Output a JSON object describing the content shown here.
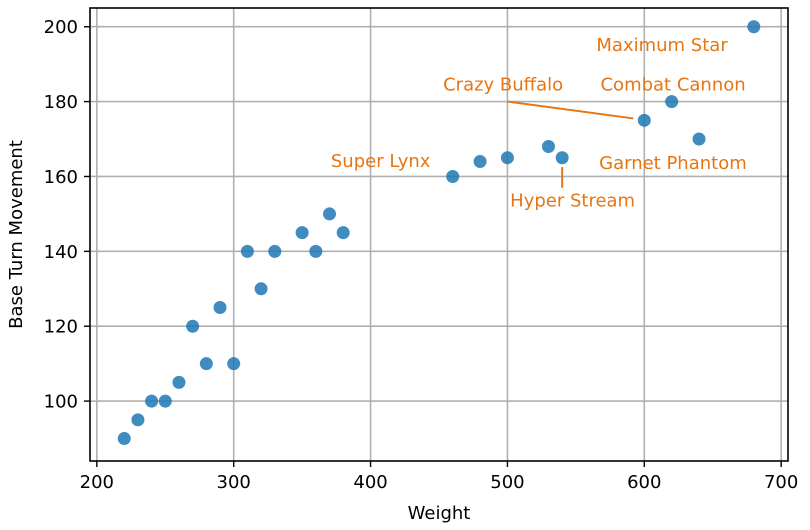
{
  "chart_data": {
    "type": "scatter",
    "title": "",
    "xlabel": "Weight",
    "ylabel": "Base Turn Movement",
    "xlim": [
      195,
      705
    ],
    "ylim": [
      84,
      205
    ],
    "xticks": [
      200,
      300,
      400,
      500,
      600,
      700
    ],
    "yticks": [
      100,
      120,
      140,
      160,
      180,
      200
    ],
    "grid": true,
    "point_color": "#1f77b4",
    "annotation_color": "#e87511",
    "points": [
      {
        "x": 220,
        "y": 90
      },
      {
        "x": 230,
        "y": 95
      },
      {
        "x": 240,
        "y": 100
      },
      {
        "x": 250,
        "y": 100
      },
      {
        "x": 260,
        "y": 105
      },
      {
        "x": 270,
        "y": 120
      },
      {
        "x": 280,
        "y": 110
      },
      {
        "x": 290,
        "y": 125
      },
      {
        "x": 300,
        "y": 110
      },
      {
        "x": 310,
        "y": 140
      },
      {
        "x": 320,
        "y": 130
      },
      {
        "x": 330,
        "y": 140
      },
      {
        "x": 350,
        "y": 145
      },
      {
        "x": 360,
        "y": 140
      },
      {
        "x": 370,
        "y": 150
      },
      {
        "x": 380,
        "y": 145
      },
      {
        "x": 460,
        "y": 160
      },
      {
        "x": 480,
        "y": 164
      },
      {
        "x": 500,
        "y": 165
      },
      {
        "x": 530,
        "y": 168
      },
      {
        "x": 540,
        "y": 165
      },
      {
        "x": 600,
        "y": 175
      },
      {
        "x": 620,
        "y": 180
      },
      {
        "x": 640,
        "y": 170
      },
      {
        "x": 680,
        "y": 200
      }
    ],
    "annotations": [
      {
        "text": "Maximum Star",
        "x": 680,
        "y": 200,
        "text_x": 565,
        "text_y": 193.5,
        "anchor": "start",
        "arrow": false
      },
      {
        "text": "Combat Cannon",
        "x": 620,
        "y": 180,
        "text_x": 568,
        "text_y": 183,
        "anchor": "start",
        "arrow": false
      },
      {
        "text": "Crazy Buffalo",
        "x": 600,
        "y": 175,
        "text_x": 453,
        "text_y": 183,
        "anchor": "start",
        "arrow": true,
        "arrow_from": [
          500,
          180
        ],
        "arrow_to": [
          592,
          175.5
        ]
      },
      {
        "text": "Super Lynx",
        "x": 460,
        "y": 160,
        "text_x": 371,
        "text_y": 162.5,
        "anchor": "start",
        "arrow": false
      },
      {
        "text": "Garnet Phantom",
        "x": 640,
        "y": 170,
        "text_x": 567,
        "text_y": 162,
        "anchor": "start",
        "arrow": false
      },
      {
        "text": "Hyper Stream",
        "x": 540,
        "y": 165,
        "text_x": 502,
        "text_y": 152,
        "anchor": "start",
        "arrow": true,
        "arrow_from": [
          540,
          157
        ],
        "arrow_to": [
          540,
          162.5
        ]
      }
    ]
  }
}
